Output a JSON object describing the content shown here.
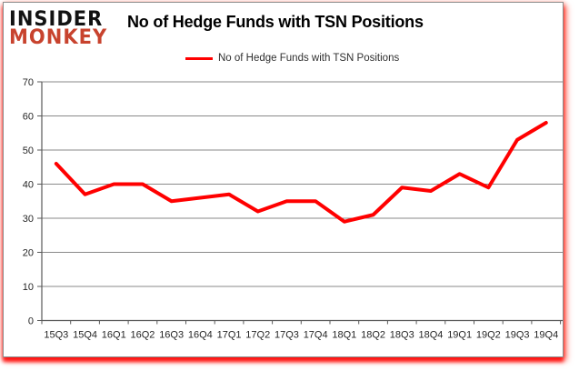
{
  "logo": {
    "line1": "INSIDER",
    "line2": "MONKEY"
  },
  "title": "No of Hedge Funds with TSN Positions",
  "legend": {
    "label": "No of Hedge Funds with TSN Positions",
    "swatch_color": "#ff0000"
  },
  "colors": {
    "line": "#ff0000",
    "grid": "#8a8a8a",
    "axis": "#595959",
    "logo_red": "#c8432e",
    "panel_border": "#8c8c8c",
    "frame_glow": "#ff0000"
  },
  "chart_data": {
    "type": "line",
    "title": "No of Hedge Funds with TSN Positions",
    "xlabel": "",
    "ylabel": "",
    "categories": [
      "15Q3",
      "15Q4",
      "16Q1",
      "16Q2",
      "16Q3",
      "16Q4",
      "17Q1",
      "17Q2",
      "17Q3",
      "17Q4",
      "18Q1",
      "18Q2",
      "18Q3",
      "18Q4",
      "19Q1",
      "19Q2",
      "19Q3",
      "19Q4"
    ],
    "series": [
      {
        "name": "No of Hedge Funds with TSN Positions",
        "color": "#ff0000",
        "values": [
          46,
          37,
          40,
          40,
          35,
          36,
          37,
          32,
          35,
          35,
          29,
          31,
          39,
          38,
          43,
          39,
          53,
          58
        ]
      }
    ],
    "ylim": [
      0,
      70
    ],
    "yticks": [
      0,
      10,
      20,
      30,
      40,
      50,
      60,
      70
    ],
    "grid": "horizontal-only",
    "legend_position": "top-center"
  }
}
